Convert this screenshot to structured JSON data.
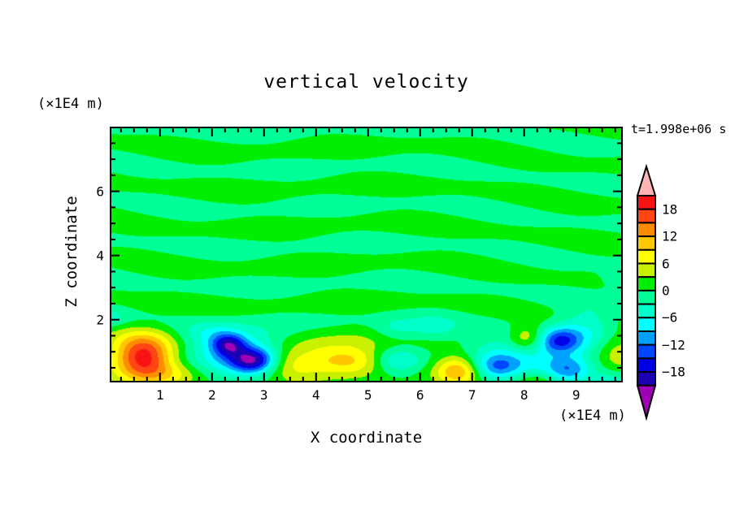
{
  "page": {
    "background_color": "#ffffff"
  },
  "chart_data": {
    "type": "filled_contour",
    "title": "vertical velocity",
    "time_annotation": "t=1.998e+06 s",
    "xlabel": "X coordinate",
    "ylabel": "Z coordinate",
    "x_unit_label": "(×1E4 m)",
    "y_unit_label": "(×1E4 m)",
    "x_range": [
      0.05,
      9.88
    ],
    "z_range": [
      0.07,
      7.99
    ],
    "x_major_ticks": [
      1,
      2,
      3,
      4,
      5,
      6,
      7,
      8,
      9
    ],
    "x_minor_step": 0.25,
    "y_major_ticks": [
      2,
      4,
      6
    ],
    "y_minor_step": 0.5,
    "grid": false,
    "contour_levels": {
      "min": -21,
      "max": 21,
      "step": 3
    },
    "palette_ascending": [
      "#1E00B4",
      "#0000E6",
      "#0046FF",
      "#00A0FF",
      "#00FFFF",
      "#00FFC8",
      "#00FF96",
      "#00EE00",
      "#C8F000",
      "#FFFF00",
      "#FFC800",
      "#FF8C00",
      "#FF4614",
      "#F81414"
    ],
    "under_color": "#A000B4",
    "over_color": "#FFB4B4",
    "colorbar_labels": [
      "18",
      "12",
      "6",
      "0",
      "−6",
      "−12",
      "−18"
    ],
    "field": {
      "background": {
        "base": 0.1,
        "w1": {
          "kz": 5.2,
          "kx": 0.3,
          "xmod_amp": 1.1,
          "xmod_k": 0.8,
          "amp": 1.25
        },
        "w2": {
          "kx": 2.1,
          "kz": 1.4,
          "phase": 0.7,
          "amp": 0.6
        },
        "taper_z": 1.9,
        "taper_min": 0.4
      },
      "feature_format": [
        "x_center",
        "z_center",
        "amplitude",
        "sigma_x",
        "sigma_z"
      ],
      "features": [
        [
          0.68,
          0.85,
          20.0,
          0.4,
          0.52
        ],
        [
          1.25,
          0.3,
          5.0,
          0.45,
          0.28
        ],
        [
          2.55,
          0.95,
          -11.0,
          0.6,
          0.48
        ],
        [
          2.32,
          1.22,
          -13.0,
          0.22,
          0.24
        ],
        [
          2.78,
          0.72,
          -14.0,
          0.28,
          0.26
        ],
        [
          1.95,
          1.55,
          -4.0,
          0.35,
          0.3
        ],
        [
          3.55,
          0.6,
          6.0,
          0.4,
          0.35
        ],
        [
          4.25,
          0.9,
          5.0,
          0.75,
          0.5
        ],
        [
          4.38,
          0.72,
          4.0,
          0.3,
          0.28
        ],
        [
          4.82,
          0.7,
          4.5,
          0.3,
          0.3
        ],
        [
          5.6,
          0.72,
          -6.5,
          0.3,
          0.28
        ],
        [
          5.55,
          1.7,
          -4.0,
          0.3,
          0.25
        ],
        [
          6.25,
          1.75,
          -4.0,
          0.3,
          0.25
        ],
        [
          6.72,
          0.42,
          12.5,
          0.3,
          0.33
        ],
        [
          7.55,
          0.75,
          -6.0,
          0.5,
          0.45
        ],
        [
          7.48,
          0.52,
          -6.0,
          0.28,
          0.25
        ],
        [
          8.55,
          1.05,
          -6.5,
          0.65,
          0.5
        ],
        [
          8.68,
          1.35,
          -11.0,
          0.3,
          0.27
        ],
        [
          8.85,
          0.45,
          -9.0,
          0.3,
          0.28
        ],
        [
          9.2,
          1.9,
          -4.5,
          0.4,
          0.35
        ],
        [
          8.08,
          1.42,
          9.5,
          0.27,
          0.3
        ],
        [
          8.2,
          0.05,
          5.0,
          0.3,
          0.22
        ],
        [
          9.85,
          1.05,
          5.5,
          0.3,
          0.45
        ],
        [
          9.8,
          3.3,
          -3.5,
          0.22,
          0.25
        ],
        [
          9.7,
          0.1,
          -4.0,
          0.35,
          0.2
        ],
        [
          0.02,
          2.05,
          -4.0,
          0.18,
          0.18
        ]
      ]
    }
  }
}
